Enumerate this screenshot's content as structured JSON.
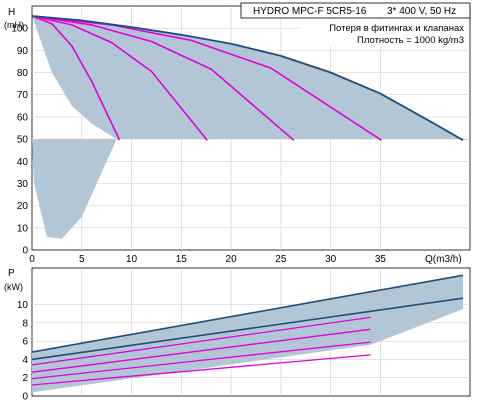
{
  "chart_data": [
    {
      "type": "line",
      "title": "HYDRO MPC-F 5CR5-16",
      "subtitle": "3* 400 V, 50 Hz",
      "annotations": [
        "Потеря в фитингах и клапанах",
        "Плотность = 1000 kg/m3"
      ],
      "ylabel": "H",
      "yunit": "(mH)",
      "xlabel": "Q(m3/h)",
      "xlim": [
        0,
        44
      ],
      "ylim": [
        0,
        110
      ],
      "xticks": [
        0,
        5,
        10,
        15,
        20,
        25,
        30,
        35
      ],
      "yticks": [
        0,
        10,
        20,
        30,
        40,
        50,
        60,
        70,
        80,
        90,
        100
      ],
      "grid": true,
      "colors": {
        "max_curve": "#1f4e79",
        "speed_curves": "#e000e0",
        "area": "#b3c6d6"
      },
      "max_curve": {
        "x": [
          0,
          5,
          10,
          15,
          20,
          25,
          30,
          35,
          40,
          43.3
        ],
        "y": [
          105.5,
          103.5,
          100.5,
          97,
          93,
          87.5,
          80,
          70.5,
          58,
          49.5
        ]
      },
      "series": [
        {
          "x": [
            0,
            2,
            4,
            6,
            8.8
          ],
          "y": [
            105.5,
            102,
            92,
            76,
            49.5
          ]
        },
        {
          "x": [
            0,
            4,
            8,
            12,
            17.6
          ],
          "y": [
            105.5,
            101.5,
            93.5,
            80.5,
            49.5
          ]
        },
        {
          "x": [
            0,
            6,
            12,
            18,
            26.3
          ],
          "y": [
            105.5,
            101.5,
            94,
            81.5,
            49.5
          ]
        },
        {
          "x": [
            0,
            8,
            16,
            24,
            35.1
          ],
          "y": [
            105.5,
            101.5,
            94.5,
            82,
            49.5
          ]
        }
      ],
      "band_lower": {
        "x": [
          0,
          2,
          4,
          6,
          8.5,
          44
        ],
        "y": [
          105.5,
          80,
          65,
          57,
          50,
          50
        ]
      },
      "band_tail": {
        "x": [
          0.2,
          1.5,
          3,
          5,
          7,
          8.5
        ],
        "y": [
          30,
          6,
          5,
          15,
          35,
          50
        ]
      }
    },
    {
      "type": "line",
      "ylabel": "P",
      "yunit": "(kW)",
      "xlim": [
        0,
        44
      ],
      "ylim": [
        0,
        14
      ],
      "yticks": [
        0,
        2,
        4,
        6,
        8,
        10
      ],
      "grid": true,
      "upper_lines": [
        {
          "x": [
            0,
            43.3
          ],
          "y": [
            4.8,
            13.2
          ]
        },
        {
          "x": [
            0,
            43.3
          ],
          "y": [
            4.0,
            10.7
          ]
        }
      ],
      "series": [
        {
          "x": [
            0,
            34
          ],
          "y": [
            3.4,
            8.6
          ]
        },
        {
          "x": [
            0,
            34
          ],
          "y": [
            2.6,
            7.3
          ]
        },
        {
          "x": [
            0,
            34
          ],
          "y": [
            1.9,
            5.9
          ]
        },
        {
          "x": [
            0,
            34
          ],
          "y": [
            1.2,
            4.5
          ]
        }
      ]
    }
  ]
}
